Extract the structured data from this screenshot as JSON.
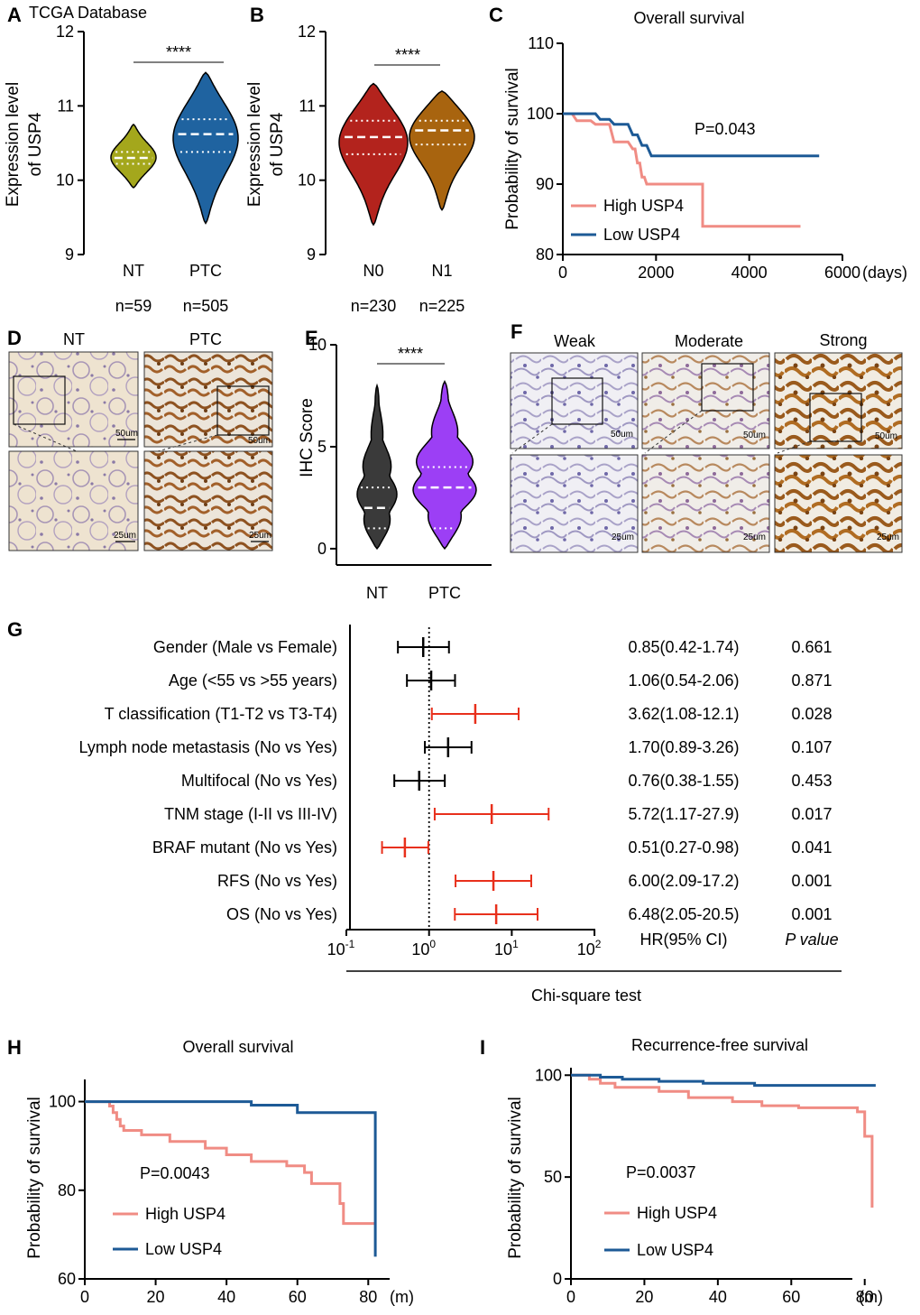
{
  "colors": {
    "nt_green": "#a4a71c",
    "ptc_blue": "#1f63a0",
    "n0_red": "#b3231d",
    "n1_brown": "#a8640f",
    "ihc_nt": "#3a3a3a",
    "ihc_ptc": "#9c3ff5",
    "high": "#f08c84",
    "low": "#1d5a96",
    "sig": "#e8301c",
    "ns": "#000000"
  },
  "chart_data": [
    {
      "id": "A",
      "panel_label": "A",
      "type": "violin",
      "title": "TCGA Database",
      "ylabel_line1": "Expression level",
      "ylabel_line2": "of USP4",
      "ylim": [
        9,
        12
      ],
      "yticks": [
        "9",
        "10",
        "11",
        "12"
      ],
      "groups": [
        {
          "name": "NT",
          "n_label": "n=59",
          "median": 10.3,
          "q1": 10.22,
          "q3": 10.38,
          "min": 9.9,
          "max": 10.75
        },
        {
          "name": "PTC",
          "n_label": "n=505",
          "median": 10.62,
          "q1": 10.38,
          "q3": 10.82,
          "min": 9.42,
          "max": 11.45
        }
      ],
      "significance": "****"
    },
    {
      "id": "B",
      "panel_label": "B",
      "type": "violin",
      "title": "",
      "ylabel_line1": "Expression level",
      "ylabel_line2": "of USP4",
      "ylim": [
        9,
        12
      ],
      "yticks": [
        "9",
        "10",
        "11",
        "12"
      ],
      "groups": [
        {
          "name": "N0",
          "n_label": "n=230",
          "median": 10.58,
          "q1": 10.35,
          "q3": 10.8,
          "min": 9.4,
          "max": 11.3
        },
        {
          "name": "N1",
          "n_label": "n=225",
          "median": 10.67,
          "q1": 10.48,
          "q3": 10.8,
          "min": 9.6,
          "max": 11.2
        }
      ],
      "significance": "****"
    },
    {
      "id": "C",
      "panel_label": "C",
      "type": "line",
      "title": "Overall survival",
      "ylabel": "Probability of survival",
      "x_unit": "(days)",
      "xlim": [
        0,
        6000
      ],
      "ylim": [
        80,
        110
      ],
      "xticks": [
        "0",
        "2000",
        "4000",
        "6000"
      ],
      "yticks": [
        "80",
        "90",
        "100",
        "110"
      ],
      "pvalue": "P=0.043",
      "series": [
        {
          "name": "High USP4",
          "points": [
            [
              0,
              100
            ],
            [
              200,
              100
            ],
            [
              300,
              99
            ],
            [
              600,
              99
            ],
            [
              700,
              98.5
            ],
            [
              1000,
              98.5
            ],
            [
              1100,
              96
            ],
            [
              1400,
              96
            ],
            [
              1500,
              95
            ],
            [
              1550,
              95
            ],
            [
              1600,
              93
            ],
            [
              1650,
              93
            ],
            [
              1700,
              91
            ],
            [
              1750,
              91
            ],
            [
              1800,
              90
            ],
            [
              3000,
              90
            ],
            [
              3000,
              84
            ],
            [
              5100,
              84
            ]
          ]
        },
        {
          "name": "Low USP4",
          "points": [
            [
              0,
              100
            ],
            [
              700,
              100
            ],
            [
              800,
              99.2
            ],
            [
              1000,
              99.2
            ],
            [
              1100,
              98.5
            ],
            [
              1400,
              98.5
            ],
            [
              1500,
              97
            ],
            [
              1600,
              97
            ],
            [
              1700,
              95.5
            ],
            [
              1800,
              95.5
            ],
            [
              1900,
              94
            ],
            [
              5500,
              94
            ]
          ]
        }
      ]
    },
    {
      "id": "D",
      "panel_label": "D",
      "type": "ihc_images",
      "columns": [
        "NT",
        "PTC"
      ],
      "scale_top": "50um",
      "scale_bottom": "25um"
    },
    {
      "id": "E",
      "panel_label": "E",
      "type": "violin",
      "title": "",
      "ylabel": "IHC Score",
      "ylim": [
        -0.8,
        10
      ],
      "yticks": [
        "0",
        "5",
        "10"
      ],
      "groups": [
        {
          "name": "NT",
          "median": 2,
          "q1": 1,
          "q3": 3,
          "min": 0,
          "max": 8
        },
        {
          "name": "PTC",
          "median": 3,
          "q1": 1,
          "q3": 4,
          "min": 0,
          "max": 8.2
        }
      ],
      "significance": "****"
    },
    {
      "id": "F",
      "panel_label": "F",
      "type": "ihc_images",
      "columns": [
        "Weak",
        "Moderate",
        "Strong"
      ],
      "scale_top": "50um",
      "scale_bottom": "25um"
    },
    {
      "id": "G",
      "panel_label": "G",
      "type": "forest",
      "xscale": "log",
      "xlim": [
        0.1,
        100
      ],
      "xticks": [
        {
          "base": "10",
          "exp": "-1"
        },
        {
          "base": "10",
          "exp": "0"
        },
        {
          "base": "10",
          "exp": "1"
        },
        {
          "base": "10",
          "exp": "2"
        }
      ],
      "col_hr_header": "HR(95% CI)",
      "col_p_header": "P value",
      "footer": "Chi-square test",
      "rows": [
        {
          "label": "Gender (Male vs Female)",
          "hr": 0.85,
          "lo": 0.42,
          "hi": 1.74,
          "ci_text": "0.85(0.42-1.74)",
          "p": "0.661",
          "significant": false
        },
        {
          "label": "Age (<55 vs >55 years)",
          "hr": 1.06,
          "lo": 0.54,
          "hi": 2.06,
          "ci_text": "1.06(0.54-2.06)",
          "p": "0.871",
          "significant": false
        },
        {
          "label": "T classification (T1-T2 vs T3-T4)",
          "hr": 3.62,
          "lo": 1.08,
          "hi": 12.1,
          "ci_text": "3.62(1.08-12.1)",
          "p": "0.028",
          "significant": true
        },
        {
          "label": "Lymph node metastasis (No vs Yes)",
          "hr": 1.7,
          "lo": 0.89,
          "hi": 3.26,
          "ci_text": "1.70(0.89-3.26)",
          "p": "0.107",
          "significant": false
        },
        {
          "label": "Multifocal (No vs Yes)",
          "hr": 0.76,
          "lo": 0.38,
          "hi": 1.55,
          "ci_text": "0.76(0.38-1.55)",
          "p": "0.453",
          "significant": false
        },
        {
          "label": "TNM stage (I-II vs III-IV)",
          "hr": 5.72,
          "lo": 1.17,
          "hi": 27.9,
          "ci_text": "5.72(1.17-27.9)",
          "p": "0.017",
          "significant": true
        },
        {
          "label": "BRAF mutant (No vs Yes)",
          "hr": 0.51,
          "lo": 0.27,
          "hi": 0.98,
          "ci_text": "0.51(0.27-0.98)",
          "p": "0.041",
          "significant": true
        },
        {
          "label": "RFS (No vs Yes)",
          "hr": 6.0,
          "lo": 2.09,
          "hi": 17.2,
          "ci_text": "6.00(2.09-17.2)",
          "p": "0.001",
          "significant": true
        },
        {
          "label": "OS (No vs Yes)",
          "hr": 6.48,
          "lo": 2.05,
          "hi": 20.5,
          "ci_text": "6.48(2.05-20.5)",
          "p": "0.001",
          "significant": true
        }
      ]
    },
    {
      "id": "H",
      "panel_label": "H",
      "type": "line",
      "title": "Overall survival",
      "ylabel": "Probability of survival",
      "x_unit": "(m)",
      "xlim": [
        0,
        84
      ],
      "ylim": [
        60,
        105
      ],
      "xticks": [
        "0",
        "20",
        "40",
        "60",
        "80"
      ],
      "yticks": [
        "60",
        "80",
        "100"
      ],
      "pvalue": "P=0.0043",
      "series": [
        {
          "name": "High USP4",
          "points": [
            [
              0,
              100
            ],
            [
              7,
              100
            ],
            [
              7,
              99
            ],
            [
              8,
              99
            ],
            [
              8,
              97.5
            ],
            [
              9,
              97.5
            ],
            [
              9,
              96
            ],
            [
              10,
              96
            ],
            [
              10,
              94.5
            ],
            [
              11,
              94.5
            ],
            [
              11,
              93.5
            ],
            [
              16,
              93.5
            ],
            [
              16,
              92.5
            ],
            [
              24,
              92.5
            ],
            [
              24,
              91
            ],
            [
              34,
              91
            ],
            [
              34,
              89.5
            ],
            [
              40,
              89.5
            ],
            [
              40,
              88
            ],
            [
              47,
              88
            ],
            [
              47,
              86.5
            ],
            [
              57,
              86.5
            ],
            [
              57,
              85.5
            ],
            [
              62,
              85.5
            ],
            [
              62,
              84
            ],
            [
              64,
              84
            ],
            [
              64,
              81.5
            ],
            [
              72,
              81.5
            ],
            [
              72,
              77
            ],
            [
              73,
              77
            ],
            [
              73,
              72.5
            ],
            [
              82,
              72.5
            ]
          ]
        },
        {
          "name": "Low USP4",
          "points": [
            [
              0,
              100
            ],
            [
              47,
              100
            ],
            [
              47,
              99.2
            ],
            [
              60,
              99.2
            ],
            [
              60,
              97.5
            ],
            [
              82,
              97.5
            ],
            [
              82,
              65
            ]
          ]
        }
      ]
    },
    {
      "id": "I",
      "panel_label": "I",
      "type": "line",
      "title": "Recurrence-free survival",
      "ylabel": "Probability of survival",
      "x_unit": "(m)",
      "xlim": [
        0,
        84
      ],
      "ylim": [
        0,
        105
      ],
      "xticks": [
        "0",
        "20",
        "40",
        "60",
        "80"
      ],
      "yticks": [
        "0",
        "50",
        "100"
      ],
      "pvalue": "P=0.0037",
      "series": [
        {
          "name": "High USP4",
          "points": [
            [
              0,
              100
            ],
            [
              5,
              100
            ],
            [
              5,
              98
            ],
            [
              8,
              98
            ],
            [
              8,
              96
            ],
            [
              12,
              96
            ],
            [
              12,
              94
            ],
            [
              24,
              94
            ],
            [
              24,
              92
            ],
            [
              32,
              92
            ],
            [
              32,
              89
            ],
            [
              44,
              89
            ],
            [
              44,
              87
            ],
            [
              52,
              87
            ],
            [
              52,
              85
            ],
            [
              62,
              85
            ],
            [
              62,
              84
            ],
            [
              78,
              84
            ],
            [
              78,
              82
            ],
            [
              80,
              82
            ],
            [
              80,
              70
            ],
            [
              82,
              70
            ],
            [
              82,
              35
            ]
          ]
        },
        {
          "name": "Low USP4",
          "points": [
            [
              0,
              100
            ],
            [
              8,
              100
            ],
            [
              8,
              99
            ],
            [
              14,
              99
            ],
            [
              14,
              98
            ],
            [
              24,
              98
            ],
            [
              24,
              97
            ],
            [
              36,
              97
            ],
            [
              36,
              96
            ],
            [
              50,
              96
            ],
            [
              50,
              95
            ],
            [
              83,
              95
            ]
          ]
        }
      ]
    }
  ]
}
